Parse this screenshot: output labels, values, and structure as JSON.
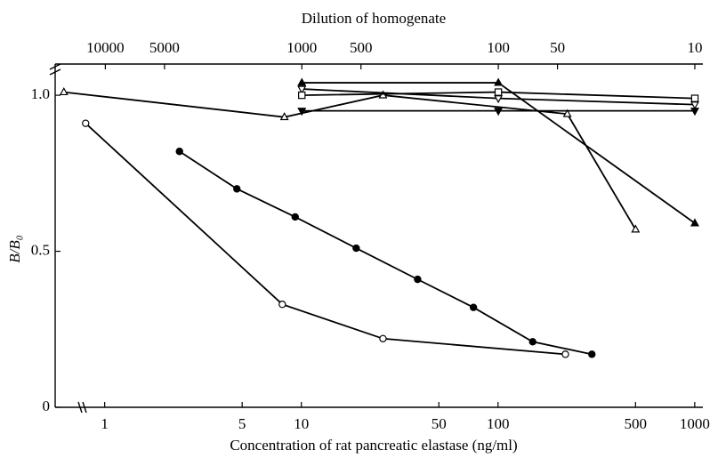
{
  "chart_data": {
    "type": "line",
    "title": "Dilution of homogenate",
    "x_label": "Concentration of rat pancreatic elastase (ng/ml)",
    "y_label": "B/B₀",
    "xscale": "log",
    "x2scale": "log",
    "xlim": [
      0.56,
      1100
    ],
    "x2lim": [
      18000,
      9.1
    ],
    "xticks": [
      1,
      5,
      10,
      50,
      100,
      500,
      1000
    ],
    "x2ticks": [
      10000,
      5000,
      1000,
      500,
      100,
      50,
      10
    ],
    "ylim": [
      0,
      1.1
    ],
    "yticks": [
      0,
      0.5,
      {
        "value": 1.0,
        "label": "1.0"
      }
    ],
    "grid": false,
    "series": [
      {
        "color": "#000000",
        "marker": "open-circle",
        "axis": "x",
        "x": [
          0.8,
          8,
          26,
          220
        ],
        "values": [
          0.91,
          0.33,
          0.22,
          0.17
        ]
      },
      {
        "color": "#000000",
        "marker": "filled-circle",
        "axis": "x",
        "x": [
          2.4,
          4.7,
          9.3,
          19,
          39,
          75,
          150,
          300
        ],
        "values": [
          0.82,
          0.7,
          0.61,
          0.51,
          0.41,
          0.32,
          0.21,
          0.17
        ]
      },
      {
        "color": "#000000",
        "marker": "open-triangle",
        "axis": "x",
        "x": [
          0.62,
          8.2,
          26,
          225,
          500
        ],
        "values": [
          1.01,
          0.93,
          1.0,
          0.94,
          0.57
        ]
      },
      {
        "color": "#000000",
        "marker": "filled-triangle",
        "axis": "x2",
        "x": [
          1000,
          100,
          10
        ],
        "values": [
          1.04,
          1.04,
          0.59
        ]
      },
      {
        "color": "#000000",
        "marker": "open-inv-triangle",
        "axis": "x2",
        "x": [
          1000,
          100,
          10
        ],
        "values": [
          1.02,
          0.99,
          0.97
        ]
      },
      {
        "color": "#000000",
        "marker": "open-square",
        "axis": "x2",
        "x": [
          1000,
          100,
          10
        ],
        "values": [
          1.0,
          1.01,
          0.99
        ]
      },
      {
        "color": "#000000",
        "marker": "filled-inv-triangle",
        "axis": "x2",
        "x": [
          1000,
          100,
          10
        ],
        "values": [
          0.95,
          0.95,
          0.95
        ]
      }
    ]
  }
}
